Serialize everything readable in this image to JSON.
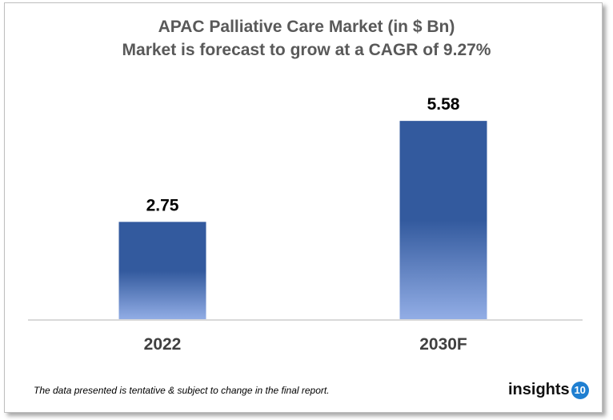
{
  "chart_data": {
    "type": "bar",
    "title": "APAC Palliative Care Market (in $ Bn)",
    "subtitle": "Market is forecast to grow at a CAGR of 9.27%",
    "categories": [
      "2022",
      "2030F"
    ],
    "values": [
      2.75,
      5.58
    ],
    "data_labels": [
      "2.75",
      "5.58"
    ],
    "xlabel": "",
    "ylabel": "",
    "ylim": [
      0,
      6
    ],
    "grid": false,
    "bar_color": "#335a9e",
    "bar_color_bottom": "#93aee6"
  },
  "footer": {
    "note": "The data presented is tentative & subject to change in the final report.",
    "logo_text": "insights",
    "logo_badge": "10"
  }
}
